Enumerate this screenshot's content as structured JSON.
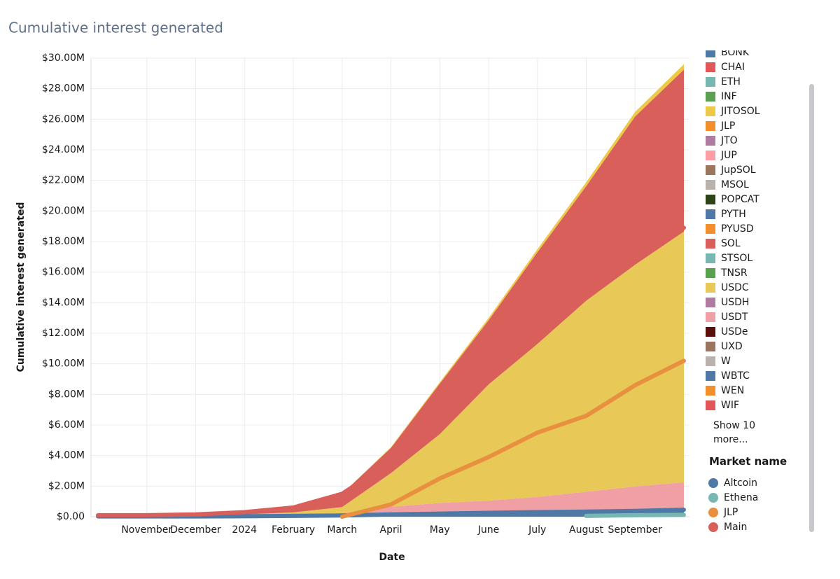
{
  "chart_data": {
    "type": "stacked_area",
    "title": "Cumulative interest generated",
    "y_label": "Cumulative interest generated",
    "x_label": "Date",
    "categories": [
      null,
      "November",
      "December",
      "2024",
      "February",
      "March",
      "April",
      "May",
      "June",
      "July",
      "August",
      "September",
      null
    ],
    "ylim": [
      0,
      30
    ],
    "yticks": [
      {
        "value": 0,
        "label": "$0.00"
      },
      {
        "value": 2,
        "label": "$2.00M"
      },
      {
        "value": 4,
        "label": "$4.00M"
      },
      {
        "value": 6,
        "label": "$6.00M"
      },
      {
        "value": 8,
        "label": "$8.00M"
      },
      {
        "value": 10,
        "label": "$10.00M"
      },
      {
        "value": 12,
        "label": "$12.00M"
      },
      {
        "value": 14,
        "label": "$14.00M"
      },
      {
        "value": 16,
        "label": "$16.00M"
      },
      {
        "value": 18,
        "label": "$18.00M"
      },
      {
        "value": 20,
        "label": "$20.00M"
      },
      {
        "value": 22,
        "label": "$22.00M"
      },
      {
        "value": 24,
        "label": "$24.00M"
      },
      {
        "value": 26,
        "label": "$26.00M"
      },
      {
        "value": 28,
        "label": "$28.00M"
      },
      {
        "value": 30,
        "label": "$30.00M"
      }
    ],
    "grid": true,
    "series": [
      {
        "name": "BONK",
        "color": "#4e79a7",
        "values": [
          0,
          0,
          0,
          0,
          0,
          0,
          0,
          0,
          0,
          0,
          0,
          0,
          0
        ]
      },
      {
        "name": "CHAI",
        "color": "#e15759",
        "values": [
          0,
          0,
          0,
          0,
          0,
          0,
          0,
          0,
          0,
          0,
          0,
          0,
          0
        ]
      },
      {
        "name": "ETH",
        "color": "#76b7b2",
        "values": [
          0,
          0,
          0,
          0,
          0,
          0,
          0,
          0,
          0,
          0,
          0,
          0,
          0
        ]
      },
      {
        "name": "INF",
        "color": "#59a14f",
        "values": [
          0,
          0,
          0,
          0,
          0,
          0,
          0,
          0,
          0,
          0,
          0,
          0,
          0
        ]
      },
      {
        "name": "JITOSOL",
        "color": "#edc948",
        "values": [
          0,
          0,
          0,
          0,
          0,
          0,
          0.05,
          0.1,
          0.15,
          0.2,
          0.25,
          0.3,
          0.35
        ]
      },
      {
        "name": "JLP",
        "color": "#f28e2b",
        "values": [
          0,
          0,
          0,
          0,
          0,
          0,
          0,
          0,
          0,
          0,
          0,
          0,
          0
        ]
      },
      {
        "name": "JTO",
        "color": "#b07aa1",
        "values": [
          0,
          0,
          0,
          0,
          0,
          0,
          0,
          0,
          0,
          0,
          0,
          0,
          0
        ]
      },
      {
        "name": "JUP",
        "color": "#ff9da7",
        "values": [
          0,
          0,
          0,
          0,
          0,
          0,
          0,
          0,
          0,
          0,
          0,
          0,
          0
        ]
      },
      {
        "name": "JupSOL",
        "color": "#9c755f",
        "values": [
          0,
          0,
          0,
          0,
          0,
          0,
          0,
          0,
          0,
          0,
          0,
          0,
          0
        ]
      },
      {
        "name": "MSOL",
        "color": "#bab0ac",
        "values": [
          0,
          0,
          0,
          0,
          0,
          0,
          0,
          0,
          0,
          0,
          0,
          0,
          0
        ]
      },
      {
        "name": "POPCAT",
        "color": "#2b4316",
        "values": [
          0,
          0,
          0,
          0,
          0,
          0,
          0,
          0,
          0,
          0,
          0,
          0,
          0
        ]
      },
      {
        "name": "PYTH",
        "color": "#4e79a7",
        "values": [
          0,
          0,
          0,
          0,
          0,
          0,
          0,
          0,
          0,
          0,
          0,
          0,
          0
        ]
      },
      {
        "name": "PYUSD",
        "color": "#f28e2b",
        "values": [
          0,
          0,
          0,
          0,
          0,
          0,
          0,
          0,
          0,
          0,
          0,
          0,
          0
        ]
      },
      {
        "name": "SOL",
        "color": "#d95f5a",
        "values": [
          0.03,
          0.03,
          0.06,
          0.15,
          0.32,
          0.87,
          1.65,
          3.3,
          4.2,
          6,
          7.5,
          9.7,
          10.6
        ]
      },
      {
        "name": "STSOL",
        "color": "#76b7b2",
        "values": [
          0,
          0,
          0,
          0,
          0,
          0,
          0,
          0,
          0,
          0,
          0,
          0,
          0
        ]
      },
      {
        "name": "TNSR",
        "color": "#59a14f",
        "values": [
          0,
          0,
          0,
          0,
          0,
          0,
          0,
          0,
          0,
          0,
          0,
          0,
          0
        ]
      },
      {
        "name": "USDC",
        "color": "#e8c857",
        "values": [
          0.02,
          0.02,
          0.03,
          0.07,
          0.15,
          0.4,
          2.2,
          4.5,
          7.6,
          10,
          12.5,
          14.5,
          16.4
        ]
      },
      {
        "name": "USDH",
        "color": "#b07aa1",
        "values": [
          0,
          0,
          0,
          0,
          0,
          0,
          0,
          0,
          0,
          0,
          0,
          0,
          0
        ]
      },
      {
        "name": "USDT",
        "color": "#f0a0a5",
        "values": [
          0.03,
          0.03,
          0.04,
          0.05,
          0.08,
          0.15,
          0.5,
          0.7,
          0.8,
          1,
          1.3,
          1.6,
          1.8
        ]
      },
      {
        "name": "USDe",
        "color": "#5a0f0a",
        "values": [
          0,
          0,
          0,
          0,
          0,
          0,
          0,
          0,
          0,
          0,
          0,
          0,
          0
        ]
      },
      {
        "name": "UXD",
        "color": "#9c755f",
        "values": [
          0,
          0,
          0,
          0,
          0,
          0,
          0,
          0,
          0,
          0,
          0,
          0,
          0
        ]
      },
      {
        "name": "W",
        "color": "#bab0ac",
        "values": [
          0,
          0,
          0,
          0,
          0,
          0,
          0,
          0,
          0,
          0,
          0,
          0,
          0
        ]
      },
      {
        "name": "WBTC",
        "color": "#4e79a7",
        "values": [
          0.02,
          0.02,
          0.02,
          0.03,
          0.05,
          0.08,
          0.15,
          0.2,
          0.25,
          0.3,
          0.33,
          0.38,
          0.45
        ]
      },
      {
        "name": "WEN",
        "color": "#f28e2b",
        "values": [
          0,
          0,
          0,
          0,
          0,
          0,
          0,
          0,
          0,
          0,
          0,
          0,
          0
        ]
      },
      {
        "name": "WIF",
        "color": "#e15759",
        "values": [
          0,
          0,
          0,
          0,
          0,
          0,
          0,
          0,
          0,
          0,
          0,
          0,
          0
        ]
      }
    ],
    "more_link": "Show 10 more...",
    "market_title": "Market name",
    "markets": [
      {
        "name": "Altcoin",
        "color": "#4e79a7",
        "values": [
          0.02,
          0.02,
          0.02,
          0.03,
          0.05,
          0.08,
          0.15,
          0.2,
          0.25,
          0.3,
          0.33,
          0.38,
          0.45
        ]
      },
      {
        "name": "Ethena",
        "color": "#76b7b2",
        "values": [
          null,
          null,
          null,
          null,
          null,
          null,
          null,
          null,
          null,
          null,
          0.05,
          0.1,
          0.12
        ]
      },
      {
        "name": "JLP",
        "color": "#e8903f",
        "values": [
          null,
          null,
          null,
          null,
          null,
          0,
          0.8,
          2.5,
          3.9,
          5.5,
          6.6,
          8.6,
          10.2
        ]
      },
      {
        "name": "Main",
        "color": "#d95f5a",
        "values": [
          0.1,
          0.1,
          0.15,
          0.3,
          0.6,
          1.5,
          3.6,
          6.3,
          8.9,
          11.5,
          14.6,
          16.9,
          18.9
        ]
      }
    ]
  }
}
